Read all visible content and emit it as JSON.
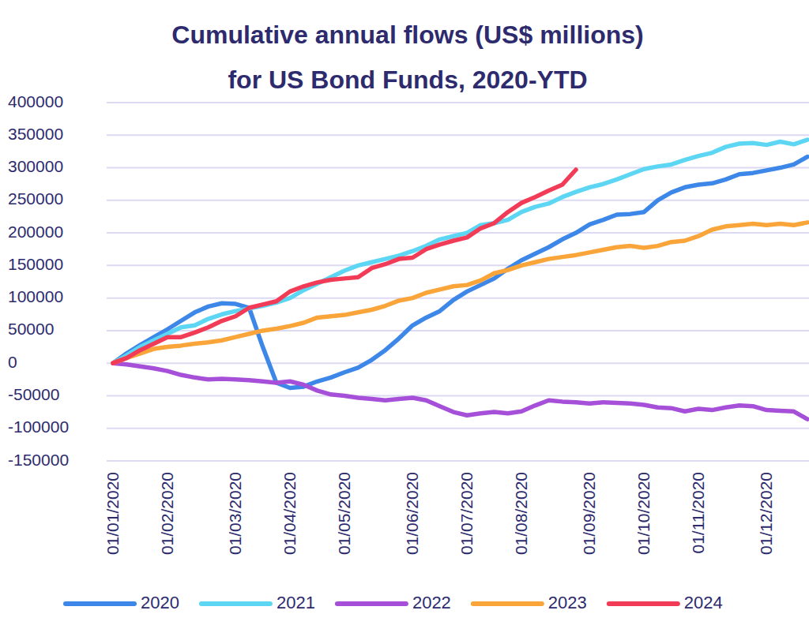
{
  "chart_data": {
    "type": "line",
    "title": [
      "Cumulative annual flows (US$ millions)",
      "for US Bond Funds, 2020-YTD"
    ],
    "categories": [
      "01/01/2020",
      null,
      null,
      null,
      "01/02/2020",
      null,
      null,
      null,
      null,
      "01/03/2020",
      null,
      null,
      null,
      "01/04/2020",
      null,
      null,
      null,
      "01/05/2020",
      null,
      null,
      null,
      null,
      "01/06/2020",
      null,
      null,
      null,
      "01/07/2020",
      null,
      null,
      null,
      "01/08/2020",
      null,
      null,
      null,
      null,
      "01/09/2020",
      null,
      null,
      null,
      "01/10/2020",
      null,
      null,
      null,
      "01/11/2020",
      null,
      null,
      null,
      null,
      "01/12/2020",
      null,
      null,
      null
    ],
    "series": [
      {
        "name": "2020",
        "color": "#3d87e8",
        "values": [
          0,
          15000,
          28000,
          40000,
          52000,
          65000,
          78000,
          87000,
          92000,
          91000,
          85000,
          25000,
          -30000,
          -38000,
          -36000,
          -28000,
          -22000,
          -14000,
          -7000,
          5000,
          20000,
          38000,
          58000,
          70000,
          80000,
          97000,
          110000,
          120000,
          130000,
          145000,
          158000,
          168000,
          178000,
          190000,
          200000,
          213000,
          220000,
          228000,
          229000,
          232000,
          250000,
          262000,
          270000,
          274000,
          276000,
          282000,
          290000,
          292000,
          296000,
          300000,
          305000,
          317000
        ]
      },
      {
        "name": "2021",
        "color": "#5dd6f4",
        "values": [
          0,
          12000,
          25000,
          35000,
          45000,
          55000,
          58000,
          68000,
          75000,
          80000,
          84000,
          88000,
          93000,
          100000,
          112000,
          122000,
          132000,
          142000,
          150000,
          155000,
          160000,
          165000,
          172000,
          180000,
          190000,
          195000,
          200000,
          212000,
          215000,
          220000,
          232000,
          240000,
          245000,
          255000,
          263000,
          270000,
          275000,
          282000,
          290000,
          298000,
          302000,
          305000,
          312000,
          318000,
          323000,
          332000,
          337000,
          338000,
          335000,
          340000,
          336000,
          343000
        ]
      },
      {
        "name": "2022",
        "color": "#a64fd8",
        "values": [
          0,
          -2000,
          -5000,
          -8000,
          -12000,
          -18000,
          -22000,
          -25000,
          -24000,
          -25000,
          -26000,
          -28000,
          -30000,
          -28000,
          -33000,
          -42000,
          -48000,
          -50000,
          -53000,
          -55000,
          -57000,
          -55000,
          -53000,
          -57000,
          -66000,
          -75000,
          -80000,
          -77000,
          -75000,
          -77000,
          -74000,
          -65000,
          -57000,
          -59000,
          -60000,
          -62000,
          -60000,
          -61000,
          -62000,
          -64000,
          -68000,
          -69000,
          -74000,
          -70000,
          -72000,
          -68000,
          -65000,
          -66000,
          -72000,
          -73000,
          -74000,
          -86000
        ]
      },
      {
        "name": "2023",
        "color": "#f9a53a",
        "values": [
          0,
          8000,
          15000,
          22000,
          25000,
          27000,
          30000,
          32000,
          35000,
          40000,
          45000,
          50000,
          53000,
          57000,
          62000,
          70000,
          72000,
          74000,
          78000,
          82000,
          88000,
          96000,
          100000,
          108000,
          113000,
          118000,
          120000,
          127000,
          138000,
          143000,
          150000,
          155000,
          160000,
          163000,
          166000,
          170000,
          174000,
          178000,
          180000,
          177000,
          180000,
          186000,
          188000,
          195000,
          205000,
          210000,
          212000,
          214000,
          212000,
          214000,
          212000,
          216000
        ]
      },
      {
        "name": "2024",
        "color": "#f23c57",
        "values": [
          0,
          8000,
          20000,
          30000,
          40000,
          40000,
          47000,
          55000,
          65000,
          72000,
          85000,
          90000,
          95000,
          110000,
          118000,
          124000,
          128000,
          130000,
          132000,
          146000,
          152000,
          160000,
          162000,
          175000,
          182000,
          188000,
          193000,
          207000,
          215000,
          232000,
          246000,
          255000,
          265000,
          274000,
          297000,
          null,
          null,
          null,
          null,
          null,
          null,
          null,
          null,
          null,
          null,
          null,
          null,
          null,
          null,
          null,
          null,
          null
        ]
      }
    ],
    "ylim": [
      -150000,
      400000
    ],
    "yticks": [
      -150000,
      -100000,
      -50000,
      0,
      50000,
      100000,
      150000,
      200000,
      250000,
      300000,
      350000,
      400000
    ],
    "grid": true,
    "legend": "bottom"
  }
}
